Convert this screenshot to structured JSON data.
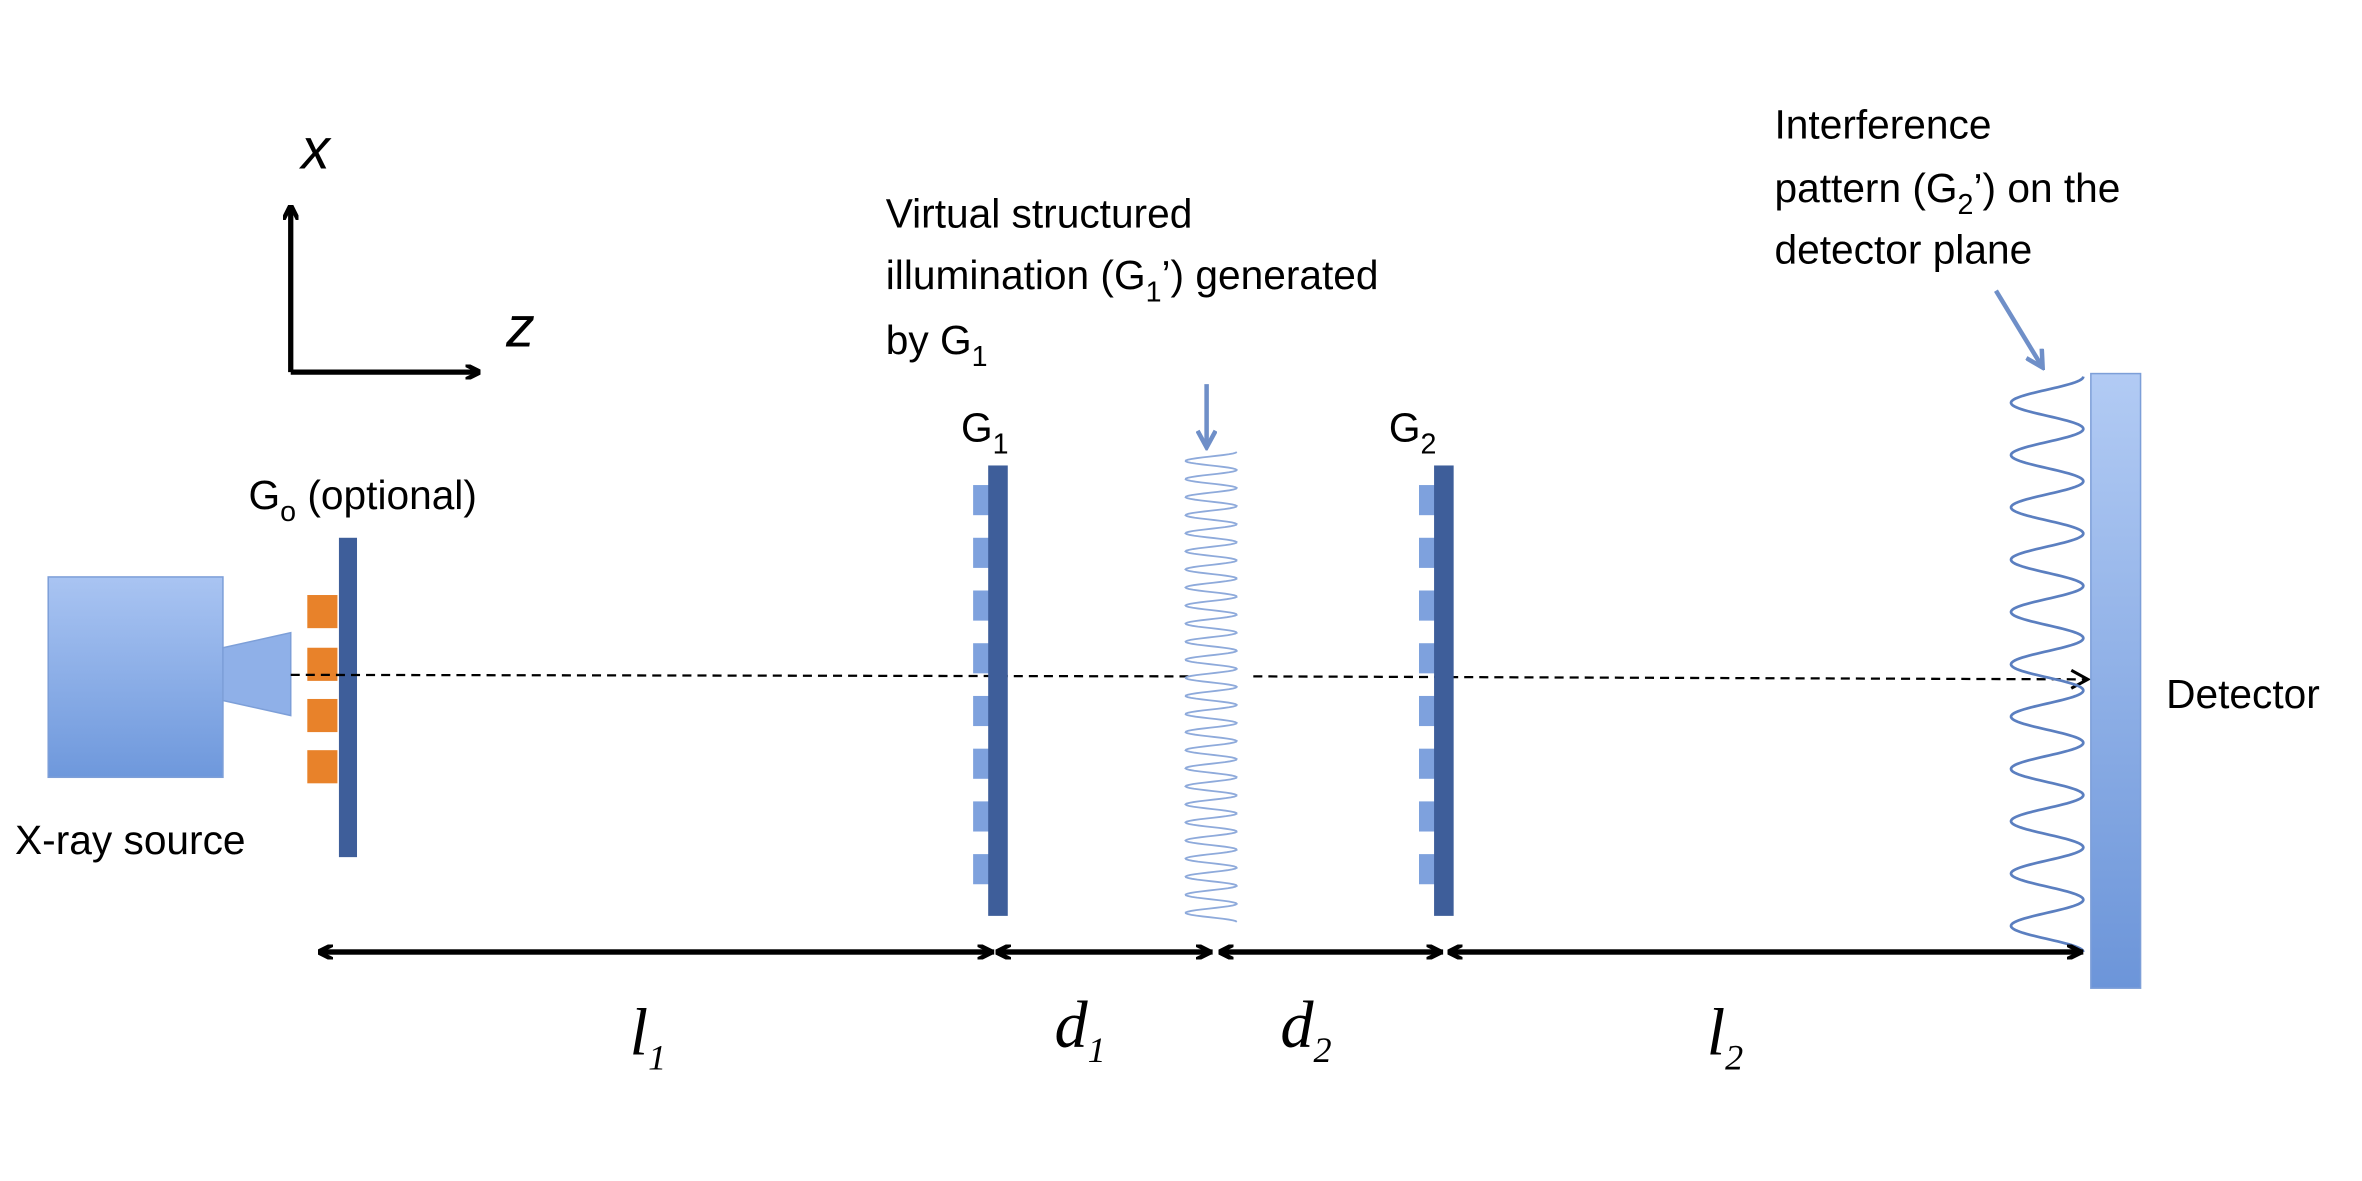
{
  "axes": {
    "vertical": "x",
    "horizontal": "z"
  },
  "source": "X-ray source",
  "detector": "Detector",
  "g0": [
    {
      "text": "G"
    },
    {
      "sub": "o"
    },
    {
      "text": " (optional)"
    }
  ],
  "g1": [
    {
      "text": "G"
    },
    {
      "sub": "1"
    }
  ],
  "g2": [
    {
      "text": "G"
    },
    {
      "sub": "2"
    }
  ],
  "virtual_illumination": [
    [
      {
        "text": "Virtual structured"
      }
    ],
    [
      {
        "text": "illumination (G"
      },
      {
        "sub": "1"
      },
      {
        "text": "’) generated"
      }
    ],
    [
      {
        "text": "by G"
      },
      {
        "sub": "1"
      }
    ]
  ],
  "interference_pattern": [
    [
      {
        "text": "Interference"
      }
    ],
    [
      {
        "text": "pattern (G"
      },
      {
        "sub": "2"
      },
      {
        "text": "’) on the"
      }
    ],
    [
      {
        "text": "detector plane"
      }
    ]
  ],
  "distances": [
    [
      {
        "text": "l"
      },
      {
        "sub": "1"
      }
    ],
    [
      {
        "text": "d"
      },
      {
        "sub": "1"
      }
    ],
    [
      {
        "text": "d"
      },
      {
        "sub": "2"
      }
    ],
    [
      {
        "text": "l"
      },
      {
        "sub": "2"
      }
    ]
  ]
}
